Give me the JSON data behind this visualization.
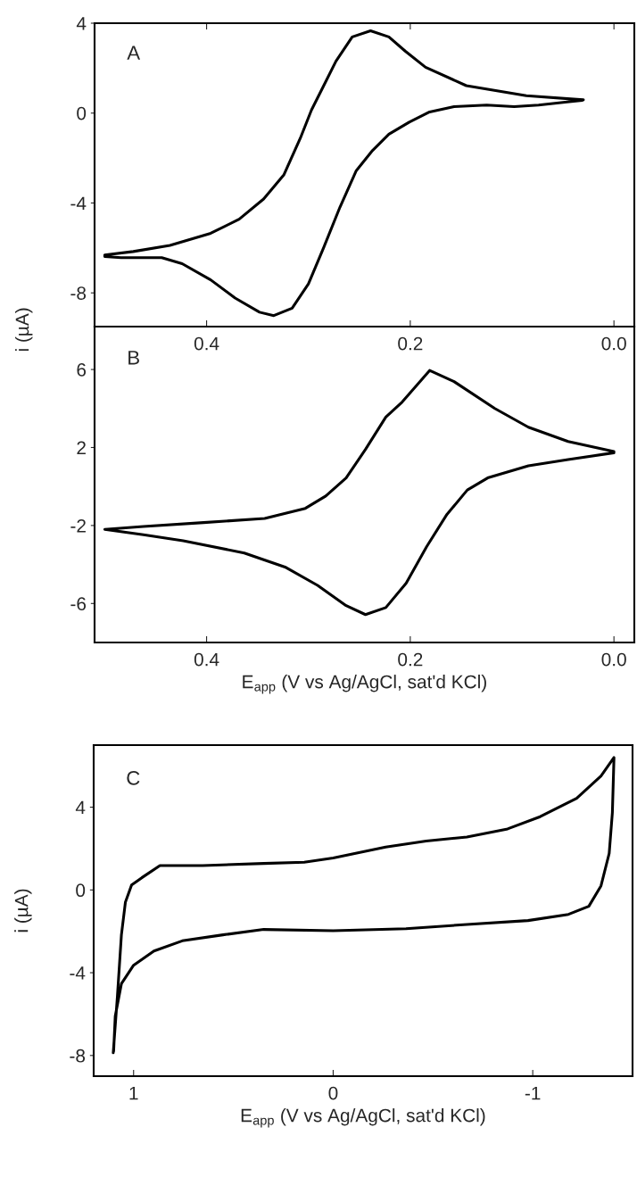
{
  "chart_data": [
    {
      "type": "line",
      "annotations": [
        "A"
      ],
      "ylabel": "i (µA)",
      "x": [
        0.03,
        0.086,
        0.145,
        0.185,
        0.205,
        0.221,
        0.239,
        0.257,
        0.273,
        0.285,
        0.297,
        0.308,
        0.324,
        0.344,
        0.368,
        0.396,
        0.436,
        0.472,
        0.5,
        0.5,
        0.484,
        0.444,
        0.424,
        0.396,
        0.372,
        0.348,
        0.334,
        0.316,
        0.3,
        0.285,
        0.269,
        0.253,
        0.237,
        0.221,
        0.201,
        0.181,
        0.157,
        0.125,
        0.098,
        0.074,
        0.046,
        0.031
      ],
      "series": [
        {
          "color": "#000000",
          "values": [
            0.59,
            0.77,
            1.22,
            2.04,
            2.76,
            3.39,
            3.66,
            3.39,
            2.31,
            1.22,
            0.14,
            -1.12,
            -2.74,
            -3.82,
            -4.72,
            -5.35,
            -5.89,
            -6.16,
            -6.31,
            -6.38,
            -6.43,
            -6.43,
            -6.7,
            -7.42,
            -8.23,
            -8.86,
            -9.01,
            -8.68,
            -7.6,
            -5.98,
            -4.18,
            -2.56,
            -1.66,
            -0.94,
            -0.4,
            0.05,
            0.29,
            0.36,
            0.29,
            0.36,
            0.5,
            0.57
          ]
        }
      ],
      "xlim": [
        0.51,
        -0.02
      ],
      "ylim": [
        -9.5,
        4
      ],
      "xticks": [
        0.4,
        0.2,
        {
          "value": 0,
          "label": "0.0"
        }
      ],
      "yticks": [
        4,
        0,
        -4,
        -8
      ],
      "grid": false
    },
    {
      "type": "line",
      "annotations": [
        "B"
      ],
      "xlabel": "E$_{app}$ (V vs Ag/AgCl, sat'd KCl)",
      "x": [
        0.0,
        0.045,
        0.084,
        0.117,
        0.157,
        0.181,
        0.208,
        0.224,
        0.244,
        0.263,
        0.283,
        0.303,
        0.343,
        0.403,
        0.462,
        0.5,
        0.462,
        0.423,
        0.363,
        0.323,
        0.291,
        0.263,
        0.244,
        0.224,
        0.204,
        0.184,
        0.164,
        0.144,
        0.124,
        0.084,
        0.045,
        0.0
      ],
      "series": [
        {
          "color": "#000000",
          "values": [
            1.79,
            2.31,
            3.04,
            4.0,
            5.38,
            5.95,
            4.33,
            3.56,
            1.9,
            0.44,
            -0.49,
            -1.12,
            -1.64,
            -1.85,
            -2.05,
            -2.2,
            -2.47,
            -2.78,
            -3.41,
            -4.13,
            -5.07,
            -6.11,
            -6.57,
            -6.21,
            -4.96,
            -3.09,
            -1.43,
            -0.18,
            0.44,
            1.06,
            1.38,
            1.73
          ]
        }
      ],
      "xlim": [
        0.51,
        -0.02
      ],
      "ylim": [
        -8,
        8.2
      ],
      "xticks": [
        0.4,
        0.2,
        {
          "value": 0,
          "label": "0.0"
        }
      ],
      "yticks": [
        6,
        2,
        -2,
        -6
      ],
      "grid": false
    },
    {
      "type": "line",
      "annotations": [
        "C"
      ],
      "xlabel": "E$_{app}$ (V vs Ag/AgCl, sat'd KCl)",
      "ylabel": "i (µA)",
      "x": [
        1.102,
        1.081,
        1.061,
        1.041,
        1.01,
        0.959,
        0.868,
        0.654,
        0.348,
        0.145,
        0.0,
        -0.161,
        -0.263,
        -0.466,
        -0.67,
        -0.874,
        -1.037,
        -1.22,
        -1.342,
        -1.407,
        -1.399,
        -1.383,
        -1.342,
        -1.281,
        -1.179,
        -0.976,
        -0.67,
        -0.365,
        0.0,
        0.348,
        0.552,
        0.756,
        0.898,
        1.0,
        1.061,
        1.092,
        1.1
      ],
      "series": [
        {
          "color": "#000000",
          "values": [
            -7.87,
            -5.12,
            -2.17,
            -0.59,
            0.24,
            0.59,
            1.18,
            1.18,
            1.28,
            1.34,
            1.54,
            1.87,
            2.07,
            2.36,
            2.56,
            2.95,
            3.54,
            4.43,
            5.51,
            6.4,
            3.74,
            1.77,
            0.2,
            -0.79,
            -1.18,
            -1.48,
            -1.67,
            -1.87,
            -1.97,
            -1.91,
            -2.17,
            -2.46,
            -2.95,
            -3.64,
            -4.53,
            -6.1,
            -7.8
          ]
        }
      ],
      "xlim": [
        1.2,
        -1.5
      ],
      "ylim": [
        -9,
        7
      ],
      "xticks": [
        1,
        0,
        -1
      ],
      "yticks": [
        4,
        0,
        -4,
        -8
      ],
      "grid": false
    }
  ]
}
